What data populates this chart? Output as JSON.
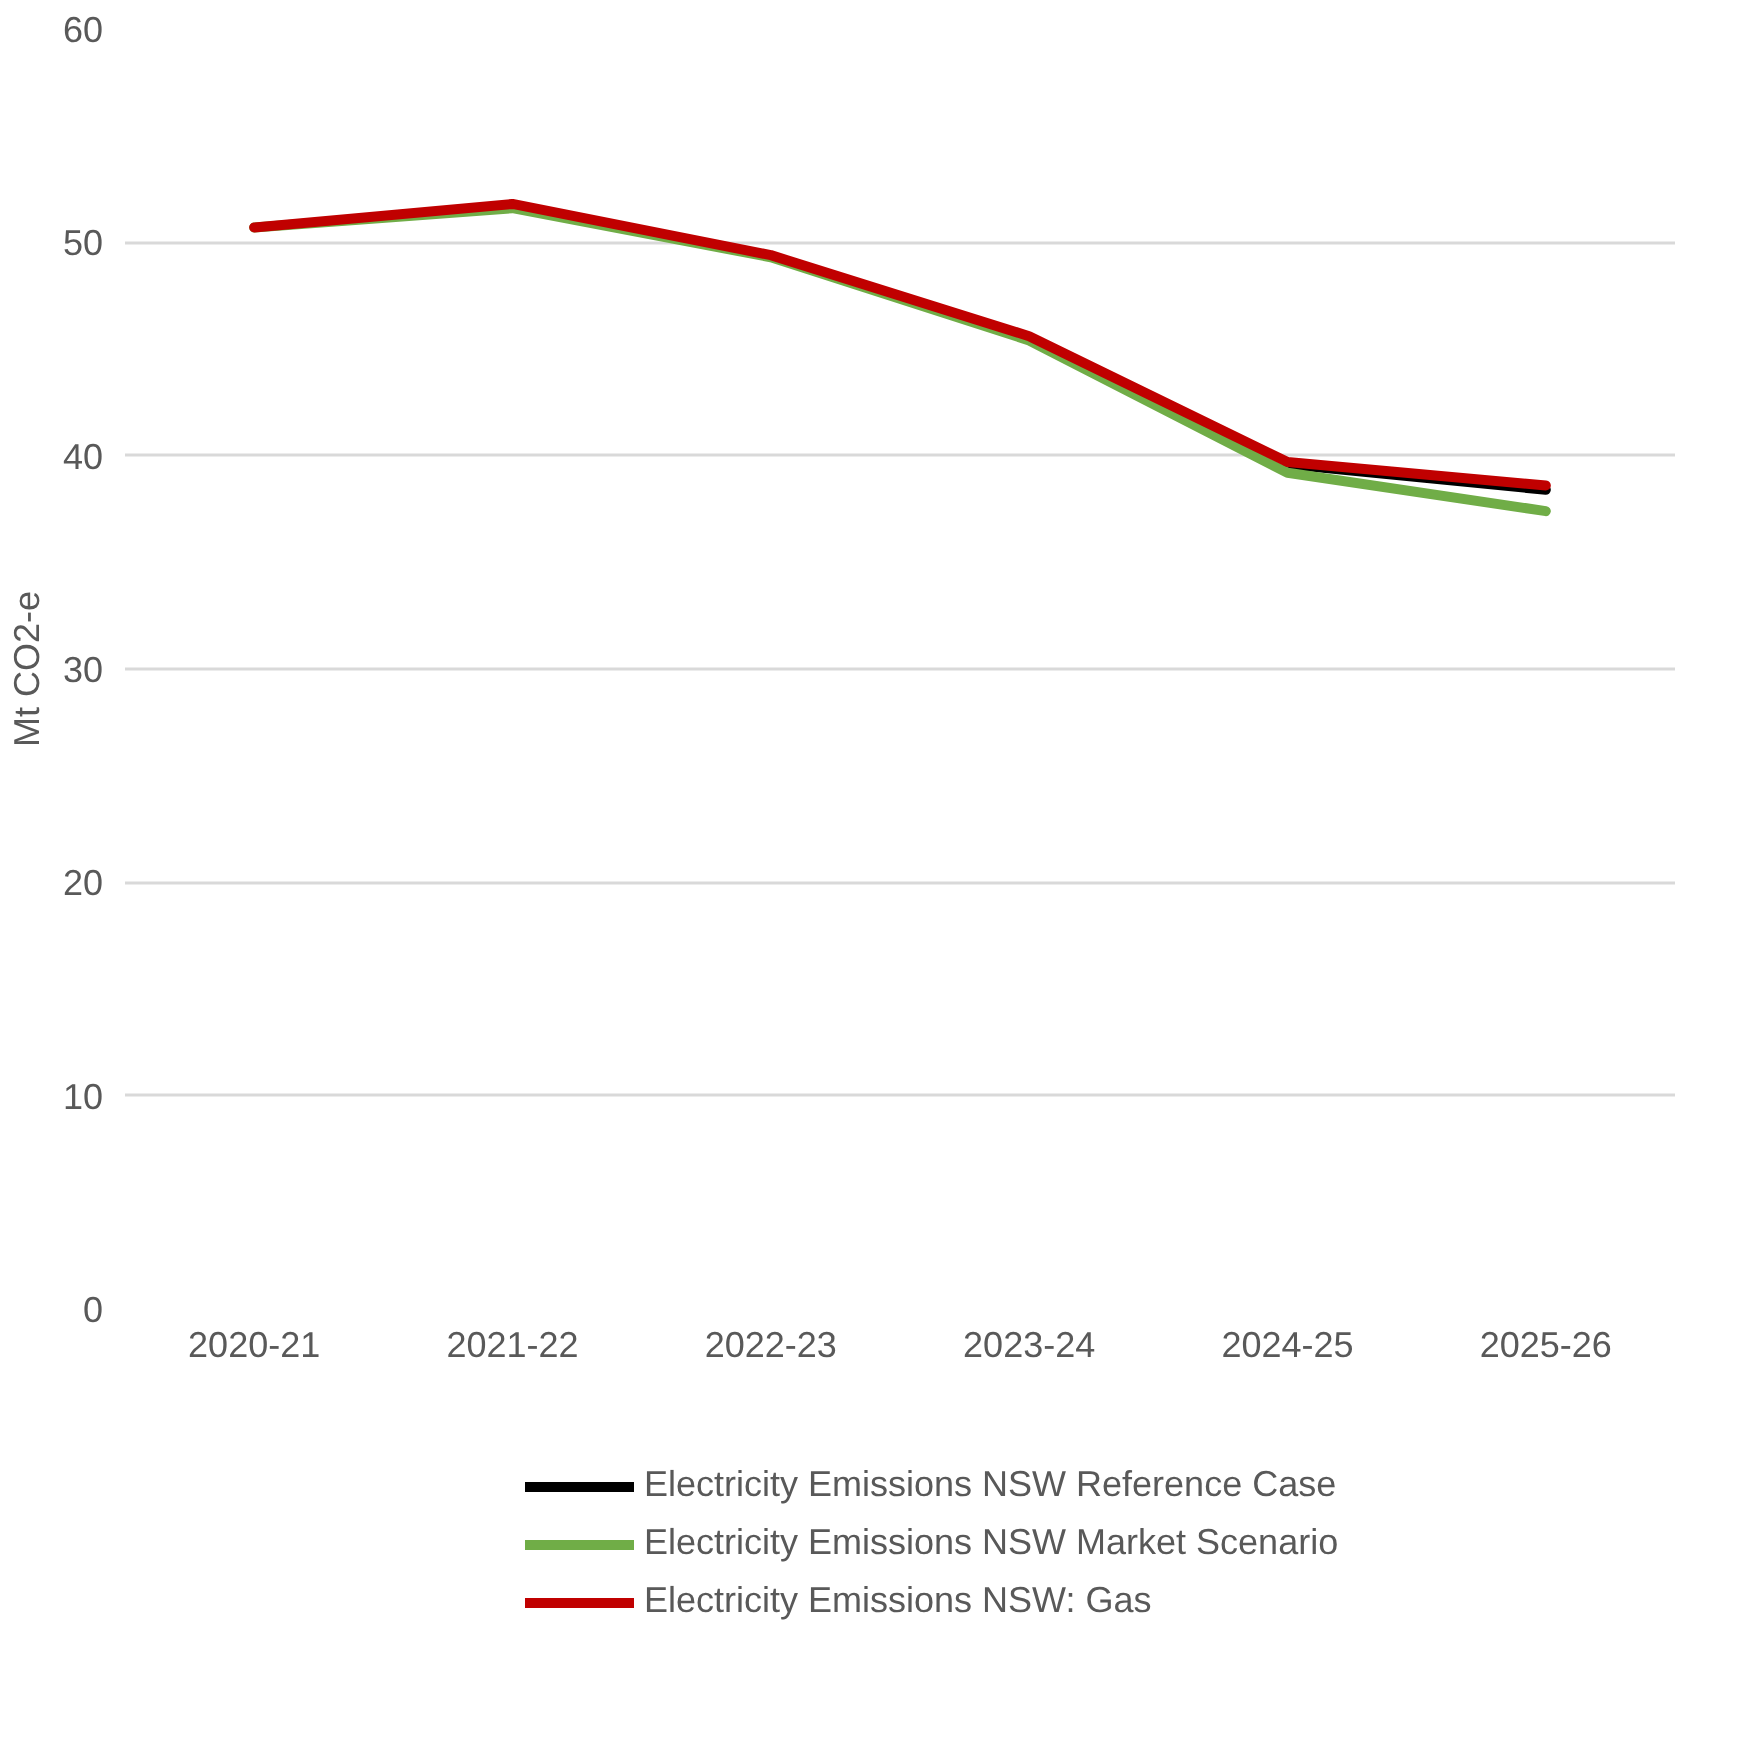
{
  "chart_data": {
    "type": "line",
    "ylabel": "Mt CO2-e",
    "categories": [
      "2020-21",
      "2021-22",
      "2022-23",
      "2023-24",
      "2024-25",
      "2025-26"
    ],
    "ylim": [
      0,
      60
    ],
    "yticks": [
      0,
      10,
      20,
      30,
      40,
      50,
      60
    ],
    "grid": "y",
    "legend": "bottom",
    "marker": "none",
    "line_style": "solid",
    "series": [
      {
        "name": "Electricity Emissions NSW Reference Case",
        "color": "#000000",
        "values": [
          null,
          null,
          null,
          null,
          39.6,
          38.4
        ]
      },
      {
        "name": "Electricity Emissions NSW Market Scenario",
        "color": "#70ad47",
        "values": [
          50.7,
          51.6,
          49.3,
          45.4,
          39.2,
          37.4
        ]
      },
      {
        "name": "Electricity Emissions NSW: Gas",
        "color": "#c00000",
        "values": [
          50.7,
          51.8,
          49.4,
          45.6,
          39.7,
          38.6
        ]
      }
    ]
  }
}
